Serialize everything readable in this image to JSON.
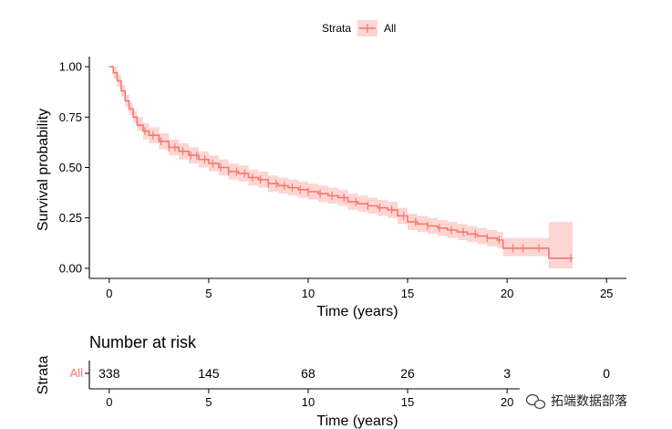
{
  "chart_data": {
    "type": "line",
    "legend": {
      "title": "Strata",
      "entries": [
        "All"
      ],
      "position": "top"
    },
    "main": {
      "xlabel": "Time (years)",
      "ylabel": "Survival probability",
      "xlim": [
        -1,
        26
      ],
      "ylim": [
        -0.05,
        1.05
      ],
      "xticks": [
        0,
        5,
        10,
        15,
        20,
        25
      ],
      "yticks": [
        0,
        0.25,
        0.5,
        0.75,
        1.0
      ],
      "ytick_labels": [
        "0.00",
        "0.25",
        "0.50",
        "0.75",
        "1.00"
      ],
      "grid": false,
      "series": [
        {
          "name": "All",
          "color": "#F8766D",
          "band_color": "#F8766D",
          "x": [
            0,
            0.2,
            0.4,
            0.6,
            0.8,
            1.0,
            1.2,
            1.4,
            1.7,
            2.0,
            2.5,
            3.0,
            3.5,
            4.0,
            4.5,
            5.0,
            5.5,
            6.0,
            6.5,
            7.0,
            7.5,
            8.0,
            8.5,
            9.0,
            9.5,
            10.0,
            10.5,
            11.0,
            11.5,
            12.0,
            12.5,
            13.0,
            13.5,
            14.0,
            14.5,
            15.0,
            15.5,
            16.0,
            16.5,
            17.0,
            17.5,
            18.0,
            18.5,
            19.0,
            19.5,
            19.8,
            20.5,
            21.0,
            21.5,
            22.0,
            22.1,
            23.3
          ],
          "y": [
            1.0,
            0.97,
            0.93,
            0.88,
            0.83,
            0.79,
            0.75,
            0.71,
            0.68,
            0.66,
            0.63,
            0.6,
            0.58,
            0.56,
            0.54,
            0.52,
            0.5,
            0.48,
            0.47,
            0.45,
            0.44,
            0.42,
            0.41,
            0.4,
            0.39,
            0.38,
            0.37,
            0.36,
            0.35,
            0.33,
            0.32,
            0.31,
            0.3,
            0.29,
            0.26,
            0.23,
            0.22,
            0.21,
            0.2,
            0.19,
            0.18,
            0.17,
            0.16,
            0.15,
            0.14,
            0.1,
            0.1,
            0.1,
            0.1,
            0.1,
            0.05,
            0.05
          ],
          "lower": [
            1.0,
            0.94,
            0.9,
            0.85,
            0.8,
            0.76,
            0.72,
            0.68,
            0.64,
            0.62,
            0.59,
            0.56,
            0.54,
            0.52,
            0.5,
            0.48,
            0.46,
            0.44,
            0.43,
            0.41,
            0.4,
            0.38,
            0.37,
            0.36,
            0.35,
            0.34,
            0.33,
            0.32,
            0.31,
            0.29,
            0.28,
            0.27,
            0.26,
            0.25,
            0.22,
            0.19,
            0.18,
            0.17,
            0.16,
            0.15,
            0.14,
            0.13,
            0.12,
            0.11,
            0.1,
            0.06,
            0.06,
            0.06,
            0.06,
            0.06,
            0.0,
            0.0
          ],
          "upper": [
            1.0,
            1.0,
            0.96,
            0.91,
            0.86,
            0.82,
            0.78,
            0.75,
            0.72,
            0.7,
            0.67,
            0.64,
            0.62,
            0.6,
            0.58,
            0.56,
            0.54,
            0.52,
            0.51,
            0.49,
            0.48,
            0.46,
            0.45,
            0.44,
            0.43,
            0.42,
            0.41,
            0.4,
            0.39,
            0.37,
            0.36,
            0.35,
            0.34,
            0.33,
            0.3,
            0.27,
            0.26,
            0.25,
            0.24,
            0.23,
            0.22,
            0.21,
            0.2,
            0.19,
            0.18,
            0.15,
            0.15,
            0.15,
            0.15,
            0.15,
            0.23,
            0.23
          ],
          "censor_x": [
            1.8,
            2.2,
            2.6,
            3.0,
            3.3,
            3.7,
            4.1,
            4.4,
            4.8,
            5.2,
            5.6,
            6.0,
            6.4,
            6.8,
            7.2,
            7.6,
            8.0,
            8.4,
            8.8,
            9.2,
            9.6,
            10.0,
            10.6,
            11.2,
            11.8,
            12.4,
            13.0,
            13.6,
            14.2,
            14.8,
            15.4,
            16.0,
            16.6,
            17.2,
            17.8,
            18.4,
            19.0,
            19.6,
            20.3,
            20.8,
            21.6,
            23.2
          ]
        }
      ]
    },
    "risk_table": {
      "title": "Number at risk",
      "ylabel": "Strata",
      "xlabel": "Time (years)",
      "row_label": "All",
      "times": [
        0,
        5,
        10,
        15,
        20,
        25
      ],
      "counts": [
        "338",
        "145",
        "68",
        "26",
        "3",
        "0"
      ]
    }
  },
  "watermark": {
    "text": "拓端数据部落",
    "icon": "wechat-icon"
  }
}
